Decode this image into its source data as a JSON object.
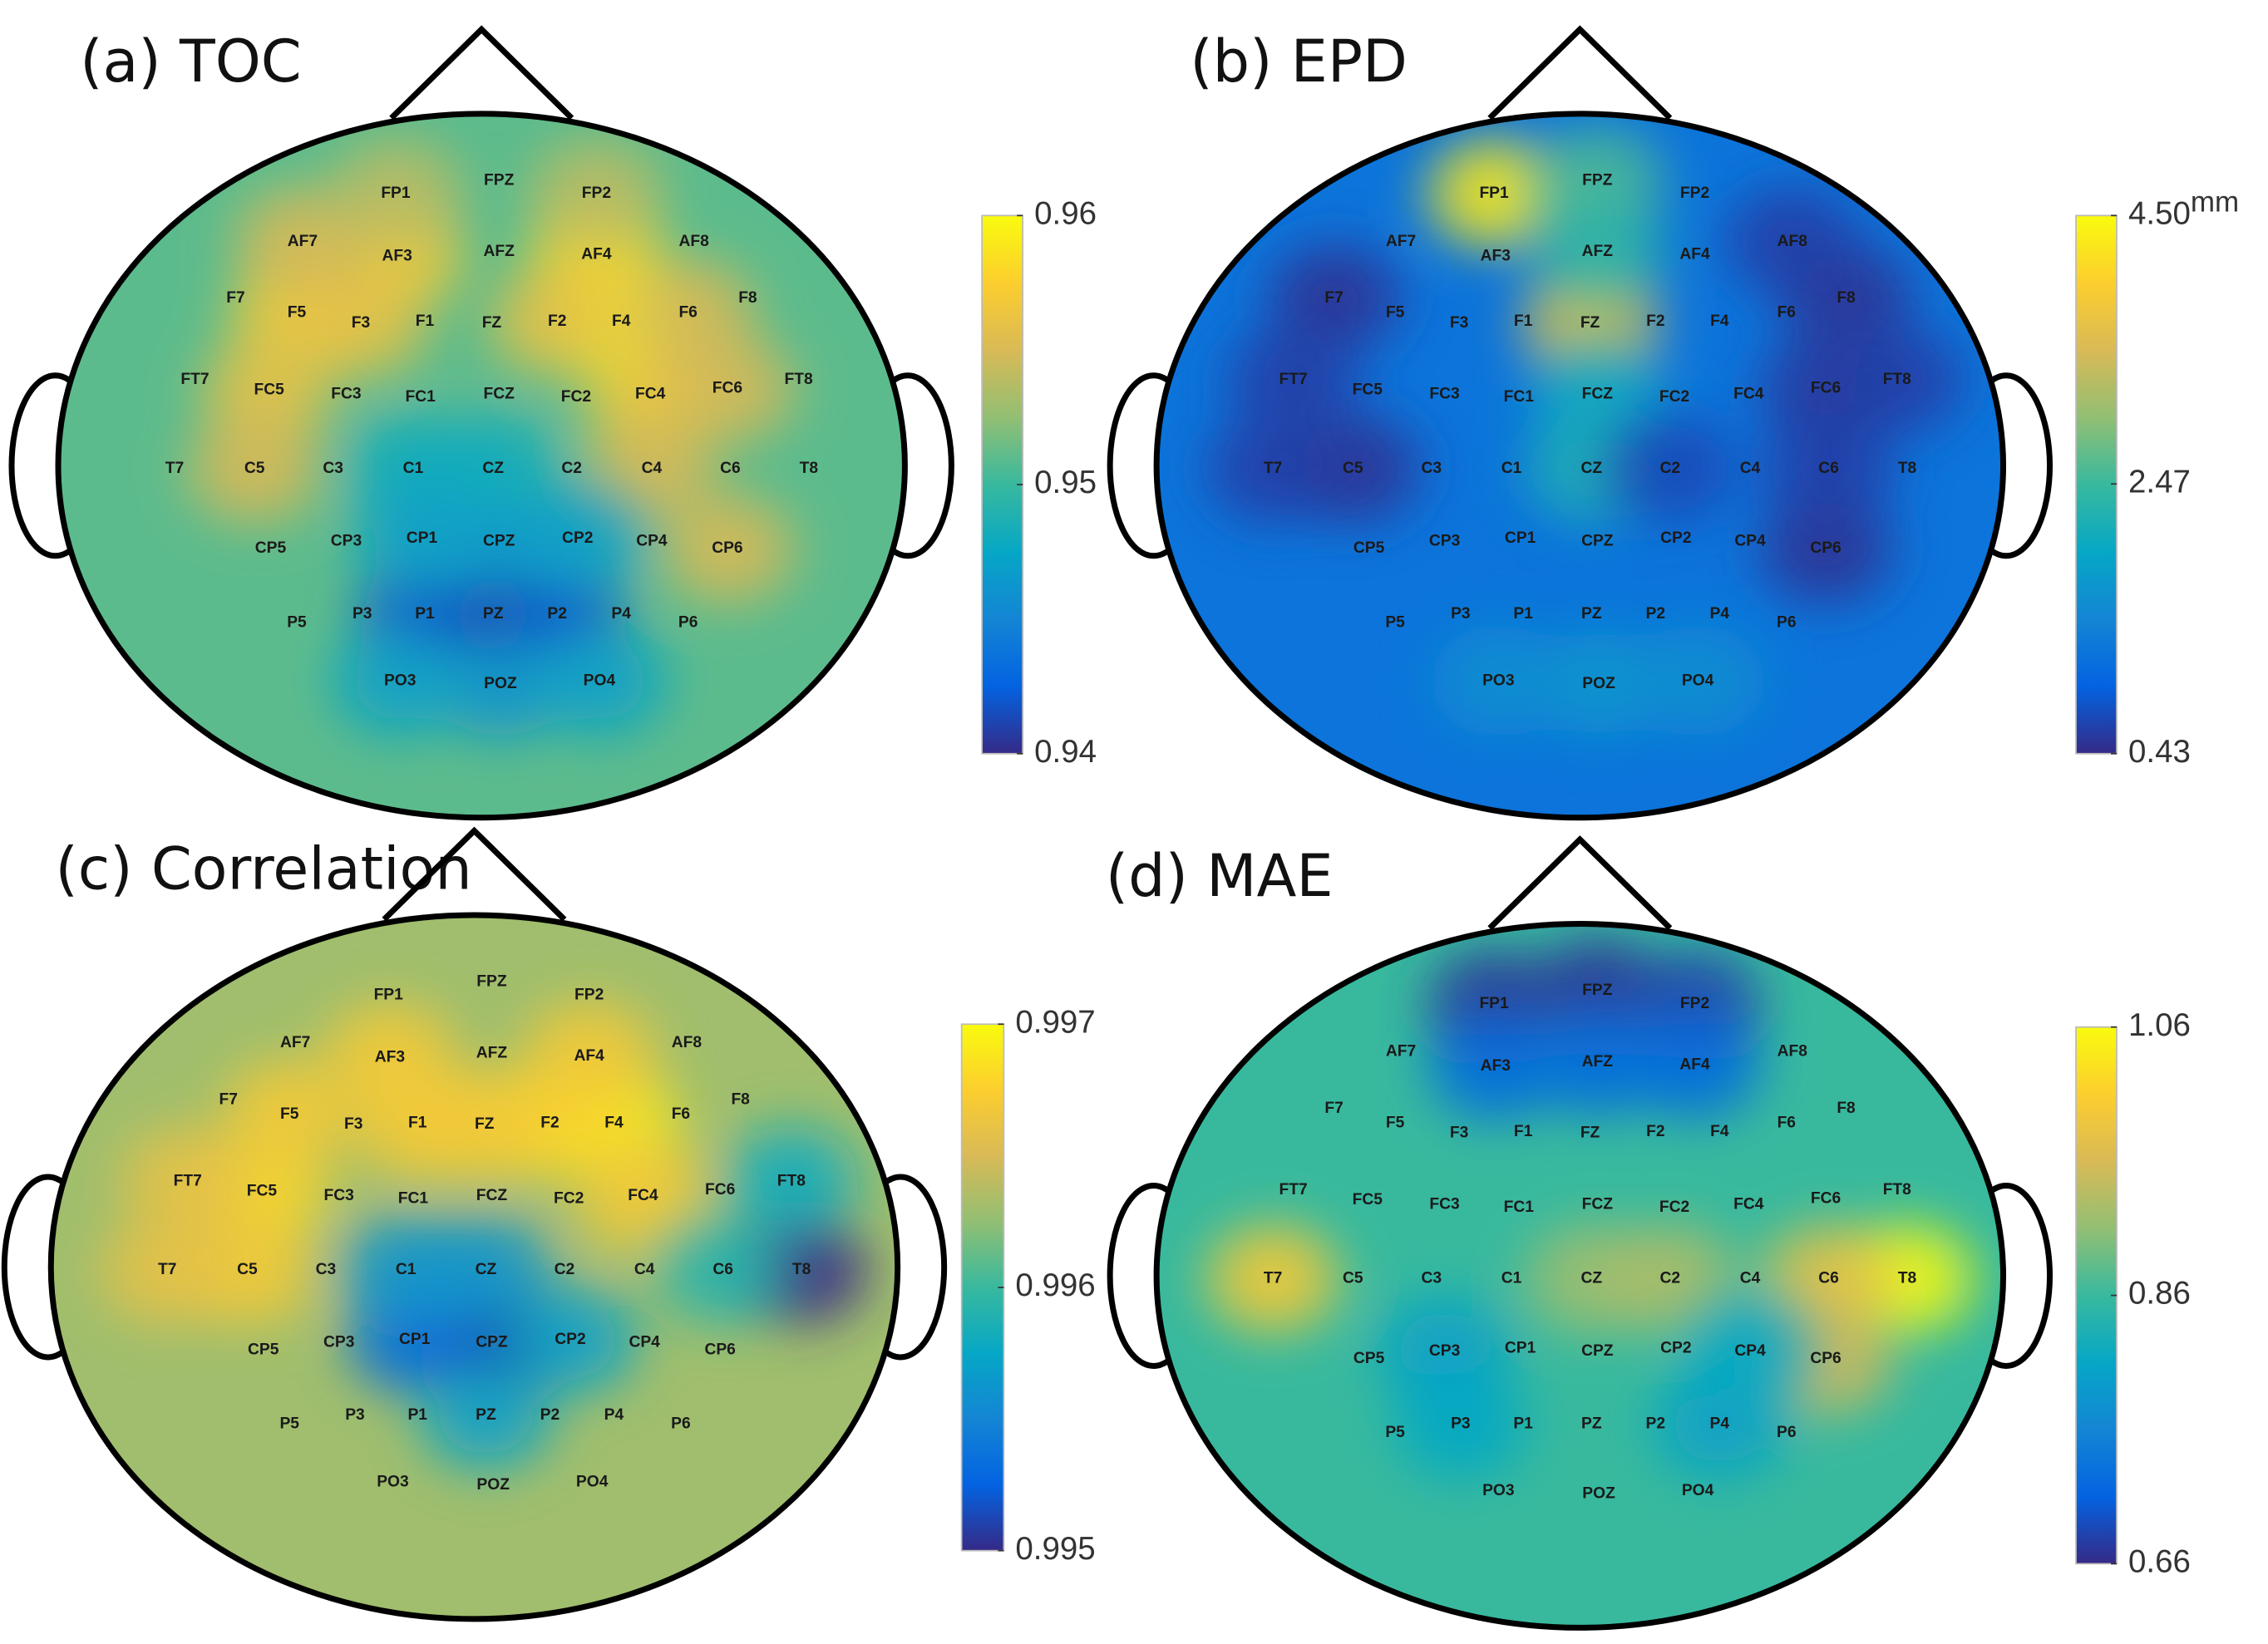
{
  "chart_data": [
    {
      "type": "heatmap",
      "id": "a",
      "title": "(a) TOC",
      "colorbar": {
        "ticks": [
          "0.96",
          "0.95",
          "0.94"
        ],
        "tick_values": [
          0.96,
          0.95,
          0.94
        ],
        "range": [
          0.94,
          0.96
        ],
        "unit": ""
      },
      "base_value": 0.951,
      "approx_values": {
        "F4": 0.96,
        "AF4": 0.958,
        "FC4": 0.957,
        "F2": 0.956,
        "AF3": 0.957,
        "F5": 0.957,
        "FC5": 0.956,
        "C5": 0.955,
        "F3": 0.956,
        "AF7": 0.955,
        "C4": 0.955,
        "CP6": 0.955,
        "FP1": 0.954,
        "FP2": 0.954,
        "FC6": 0.955,
        "F6": 0.955,
        "PZ": 0.94,
        "P1": 0.942,
        "P2": 0.942,
        "CPZ": 0.946,
        "POZ": 0.946,
        "PO3": 0.947,
        "PO4": 0.947,
        "C1": 0.948,
        "CZ": 0.948,
        "CP1": 0.947,
        "CP2": 0.947
      }
    },
    {
      "type": "heatmap",
      "id": "b",
      "title": "(b) EPD",
      "colorbar": {
        "ticks": [
          "4.50",
          "2.47",
          "0.43"
        ],
        "tick_values": [
          4.5,
          2.47,
          0.43
        ],
        "range": [
          0.43,
          4.5
        ],
        "unit": "mm"
      },
      "base_value": 1.2,
      "approx_values": {
        "FP1": 4.3,
        "FZ": 3.8,
        "FPZ": 2.6,
        "AFZ": 2.4,
        "FCZ": 2.0,
        "CZ": 2.2,
        "POZ": 1.7,
        "PO3": 1.6,
        "PO4": 1.6,
        "F7": 0.5,
        "FT7": 0.6,
        "C5": 0.5,
        "T7": 0.6,
        "CP6": 0.5,
        "F8": 0.5,
        "FC6": 0.55,
        "FT8": 0.6,
        "C6": 0.6,
        "C2": 0.7,
        "AF8": 0.6
      }
    },
    {
      "type": "heatmap",
      "id": "c",
      "title": "(c) Correlation",
      "colorbar": {
        "ticks": [
          "0.997",
          "0.996",
          "0.995"
        ],
        "tick_values": [
          0.997,
          0.996,
          0.995
        ],
        "range": [
          0.995,
          0.997
        ],
        "unit": ""
      },
      "base_value": 0.9963,
      "approx_values": {
        "F4": 0.9969,
        "F2": 0.9968,
        "FC5": 0.9968,
        "C5": 0.9967,
        "AF3": 0.9967,
        "FZ": 0.9967,
        "FC4": 0.9967,
        "T7": 0.9966,
        "FT7": 0.9966,
        "AF4": 0.9967,
        "F5": 0.9967,
        "F1": 0.9967,
        "T8": 0.995,
        "CPZ": 0.9951,
        "CP1": 0.9953,
        "C1": 0.9956,
        "CZ": 0.9956,
        "PZ": 0.9957,
        "CP2": 0.9957,
        "FT8": 0.9958,
        "C6": 0.9959
      }
    },
    {
      "type": "heatmap",
      "id": "d",
      "title": "(d) MAE",
      "colorbar": {
        "ticks": [
          "1.06",
          "0.86",
          "0.66"
        ],
        "tick_values": [
          1.06,
          0.86,
          0.66
        ],
        "range": [
          0.66,
          1.06
        ],
        "unit": ""
      },
      "base_value": 0.86,
      "approx_values": {
        "T8": 1.06,
        "C6": 0.98,
        "CP6": 0.96,
        "T7": 1.0,
        "CZ": 0.92,
        "C2": 0.93,
        "FP1": 0.67,
        "FPZ": 0.67,
        "FP2": 0.68,
        "AFZ": 0.72,
        "AF3": 0.72,
        "AF4": 0.72,
        "CP3": 0.8,
        "P4": 0.8,
        "P3": 0.81,
        "CP4": 0.81
      }
    }
  ],
  "electrodes": [
    "FP1",
    "FPZ",
    "FP2",
    "AF7",
    "AF3",
    "AFZ",
    "AF4",
    "AF8",
    "F7",
    "F5",
    "F3",
    "F1",
    "FZ",
    "F2",
    "F4",
    "F6",
    "F8",
    "FT7",
    "FC5",
    "FC3",
    "FC1",
    "FCZ",
    "FC2",
    "FC4",
    "FC6",
    "FT8",
    "T7",
    "C5",
    "C3",
    "C1",
    "CZ",
    "C2",
    "C4",
    "C6",
    "T8",
    "CP5",
    "CP3",
    "CP1",
    "CPZ",
    "CP2",
    "CP4",
    "CP6",
    "P5",
    "P3",
    "P1",
    "PZ",
    "P2",
    "P4",
    "P6",
    "PO3",
    "POZ",
    "PO4"
  ],
  "colormap": [
    "#352a87",
    "#0363e1",
    "#1485d4",
    "#06a7c6",
    "#38b99e",
    "#92bf73",
    "#d9ba56",
    "#fcce2e",
    "#f9fb0e"
  ]
}
